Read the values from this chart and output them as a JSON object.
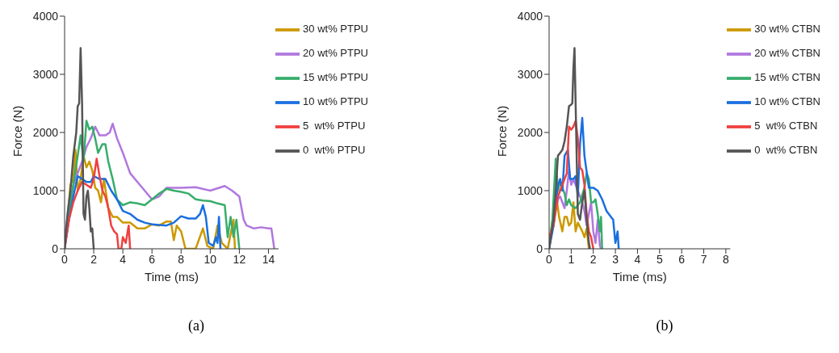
{
  "chart_data": [
    {
      "type": "line",
      "xlabel": "Time (ms)",
      "ylabel": "Force (N)",
      "xlim": [
        0,
        14.7
      ],
      "xticks": [
        0,
        2,
        4,
        6,
        8,
        10,
        12,
        14
      ],
      "ylim": [
        0,
        4000
      ],
      "yticks": [
        0,
        1000,
        2000,
        3000,
        4000
      ],
      "legend": "top right",
      "annotations": [
        "(a)"
      ],
      "series": [
        {
          "name": "0  wt% PTPU",
          "color": "#555555",
          "x": [
            0,
            0.2,
            0.4,
            0.6,
            0.8,
            0.9,
            1.0,
            1.1,
            1.2,
            1.3,
            1.4,
            1.5,
            1.6,
            1.7,
            1.8,
            1.9,
            2.0
          ],
          "values": [
            0,
            600,
            1000,
            1600,
            2000,
            2450,
            2500,
            3450,
            2500,
            600,
            500,
            900,
            1000,
            700,
            300,
            350,
            0
          ]
        },
        {
          "name": "5  wt% PTPU",
          "color": "#f04040",
          "x": [
            0,
            0.3,
            0.6,
            0.9,
            1.2,
            1.5,
            1.8,
            2.0,
            2.2,
            2.4,
            2.6,
            2.8,
            3.0,
            3.2,
            3.4,
            3.6,
            3.7,
            3.9,
            4.0,
            4.2,
            4.4,
            4.5
          ],
          "values": [
            0,
            500,
            800,
            1000,
            1150,
            1100,
            1050,
            1200,
            1550,
            1250,
            1000,
            900,
            700,
            400,
            300,
            250,
            0,
            0,
            200,
            100,
            400,
            0
          ]
        },
        {
          "name": "10 wt% PTPU",
          "color": "#1a6fdf",
          "x": [
            0,
            0.3,
            0.6,
            0.9,
            1.2,
            1.5,
            1.8,
            2.0,
            2.4,
            2.8,
            3.2,
            3.6,
            4.0,
            4.5,
            5,
            5.5,
            6,
            7,
            7.5,
            8,
            8.5,
            9,
            9.3,
            9.5,
            9.7,
            9.9,
            10.2,
            10.4,
            10.5,
            10.6,
            10.7
          ],
          "values": [
            0,
            500,
            900,
            1250,
            1200,
            1150,
            1150,
            1250,
            1200,
            1200,
            1000,
            850,
            650,
            600,
            500,
            450,
            420,
            400,
            450,
            560,
            520,
            520,
            600,
            750,
            550,
            100,
            50,
            200,
            100,
            550,
            0
          ]
        },
        {
          "name": "15 wt% PTPU",
          "color": "#37ad6b",
          "x": [
            0,
            0.3,
            0.6,
            0.9,
            1.1,
            1.3,
            1.5,
            1.7,
            1.9,
            2.1,
            2.3,
            2.6,
            2.8,
            3.0,
            3.3,
            3.6,
            4.0,
            4.5,
            5,
            5.5,
            6,
            6.5,
            7,
            7.5,
            8,
            8.5,
            9,
            9.5,
            10,
            10.5,
            11,
            11.2,
            11.4,
            11.6,
            11.8,
            12
          ],
          "values": [
            0,
            600,
            1100,
            1600,
            1950,
            1500,
            2200,
            2050,
            2100,
            1900,
            1650,
            1800,
            1800,
            1500,
            1200,
            850,
            750,
            800,
            780,
            750,
            850,
            950,
            1030,
            1000,
            980,
            950,
            850,
            830,
            820,
            780,
            750,
            200,
            550,
            200,
            500,
            0
          ]
        },
        {
          "name": "20 wt% PTPU",
          "color": "#b177de",
          "x": [
            0,
            0.3,
            0.6,
            0.9,
            1.2,
            1.5,
            1.8,
            2.1,
            2.4,
            2.8,
            3.1,
            3.3,
            3.6,
            4,
            4.5,
            5,
            5.5,
            6,
            6.5,
            7,
            8,
            9,
            10,
            11,
            11.5,
            12,
            12.3,
            12.5,
            13,
            13.5,
            14,
            14.2,
            14.4
          ],
          "values": [
            200,
            700,
            1100,
            1300,
            1500,
            1750,
            1900,
            2100,
            1950,
            1950,
            2000,
            2150,
            1900,
            1650,
            1300,
            1150,
            1000,
            850,
            900,
            1050,
            1050,
            1060,
            1000,
            1080,
            1000,
            900,
            500,
            400,
            350,
            370,
            350,
            350,
            0
          ]
        },
        {
          "name": "30 wt% PTPU",
          "color": "#cc9900",
          "x": [
            0,
            0.2,
            0.4,
            0.6,
            0.75,
            0.9,
            1.1,
            1.3,
            1.5,
            1.7,
            1.9,
            2.1,
            2.3,
            2.5,
            2.7,
            3.0,
            3.3,
            3.6,
            4,
            4.5,
            5,
            5.5,
            6,
            6.5,
            7,
            7.3,
            7.5,
            7.7,
            8,
            8.3,
            9,
            9.5,
            9.8,
            10.2,
            10.5,
            10.8,
            11.2,
            11.6,
            11.7
          ],
          "values": [
            100,
            500,
            1100,
            1200,
            1700,
            1000,
            1200,
            1600,
            1400,
            1500,
            1350,
            1050,
            1000,
            800,
            1200,
            700,
            550,
            550,
            450,
            450,
            350,
            350,
            420,
            400,
            470,
            470,
            150,
            400,
            300,
            0,
            0,
            350,
            50,
            0,
            400,
            100,
            0,
            500,
            0
          ]
        }
      ]
    },
    {
      "type": "line",
      "xlabel": "Time (ms)",
      "ylabel": "Force (N)",
      "xlim": [
        0,
        8.2
      ],
      "xticks": [
        0,
        1,
        2,
        3,
        4,
        5,
        6,
        7,
        8
      ],
      "ylim": [
        0,
        4000
      ],
      "yticks": [
        0,
        1000,
        2000,
        3000,
        4000
      ],
      "legend": "top right",
      "annotations": [
        "(b)"
      ],
      "series": [
        {
          "name": "0  wt% CTBN",
          "color": "#555555",
          "x": [
            0,
            0.2,
            0.3,
            0.4,
            0.5,
            0.6,
            0.7,
            0.8,
            0.9,
            1.0,
            1.05,
            1.1,
            1.15,
            1.2,
            1.3,
            1.4,
            1.5,
            1.6,
            1.7,
            1.8,
            1.85
          ],
          "values": [
            0,
            500,
            1000,
            1600,
            1650,
            1700,
            1850,
            2100,
            2450,
            2480,
            2500,
            3100,
            3450,
            2500,
            600,
            500,
            800,
            1000,
            500,
            100,
            0
          ]
        },
        {
          "name": "5  wt% CTBN",
          "color": "#f04040",
          "x": [
            0,
            0.2,
            0.4,
            0.6,
            0.8,
            0.9,
            1.0,
            1.1,
            1.2,
            1.3,
            1.4,
            1.5,
            1.6,
            1.7,
            1.8,
            1.9,
            2.0
          ],
          "values": [
            200,
            400,
            900,
            1100,
            1300,
            2100,
            2050,
            2100,
            2200,
            1900,
            1400,
            1350,
            1100,
            600,
            300,
            200,
            0
          ]
        },
        {
          "name": "10 wt% CTBN",
          "color": "#1a6fdf",
          "x": [
            0,
            0.2,
            0.4,
            0.5,
            0.6,
            0.7,
            0.85,
            0.95,
            1.1,
            1.2,
            1.3,
            1.4,
            1.5,
            1.6,
            1.8,
            2.0,
            2.2,
            2.4,
            2.6,
            2.8,
            2.9,
            3.0,
            3.1,
            3.15
          ],
          "values": [
            0,
            400,
            1100,
            1200,
            1000,
            1600,
            1700,
            1200,
            1200,
            1250,
            900,
            1800,
            2250,
            1600,
            1050,
            1050,
            1000,
            850,
            650,
            550,
            500,
            100,
            300,
            0
          ]
        },
        {
          "name": "15 wt% CTBN",
          "color": "#37ad6b",
          "x": [
            0,
            0.15,
            0.3,
            0.4,
            0.5,
            0.7,
            0.8,
            0.9,
            1.0,
            1.2,
            1.4,
            1.6,
            1.7,
            1.8,
            1.9,
            2.0,
            2.1,
            2.2,
            2.3,
            2.35,
            2.4
          ],
          "values": [
            0,
            500,
            1550,
            1000,
            1150,
            950,
            750,
            850,
            750,
            700,
            800,
            1050,
            1300,
            1200,
            800,
            800,
            850,
            600,
            300,
            550,
            0
          ]
        },
        {
          "name": "20 wt% CTBN",
          "color": "#b177de",
          "x": [
            0,
            0.2,
            0.4,
            0.5,
            0.7,
            0.8,
            0.9,
            1.0,
            1.1,
            1.2,
            1.3,
            1.4,
            1.5,
            1.6,
            1.7,
            1.8,
            1.9,
            2.0,
            2.1,
            2.2,
            2.3,
            2.35
          ],
          "values": [
            0,
            500,
            850,
            900,
            700,
            1000,
            1350,
            1100,
            1200,
            1100,
            1000,
            900,
            800,
            650,
            400,
            600,
            800,
            300,
            100,
            500,
            50,
            0
          ]
        },
        {
          "name": "30 wt% CTBN",
          "color": "#cc9900",
          "x": [
            0,
            0.2,
            0.3,
            0.35,
            0.45,
            0.6,
            0.7,
            0.8,
            0.9,
            1.0,
            1.1,
            1.2,
            1.3,
            1.5,
            1.6,
            1.7,
            1.8
          ],
          "values": [
            100,
            600,
            700,
            850,
            550,
            300,
            550,
            550,
            400,
            450,
            800,
            300,
            450,
            300,
            200,
            350,
            0
          ]
        }
      ]
    }
  ]
}
